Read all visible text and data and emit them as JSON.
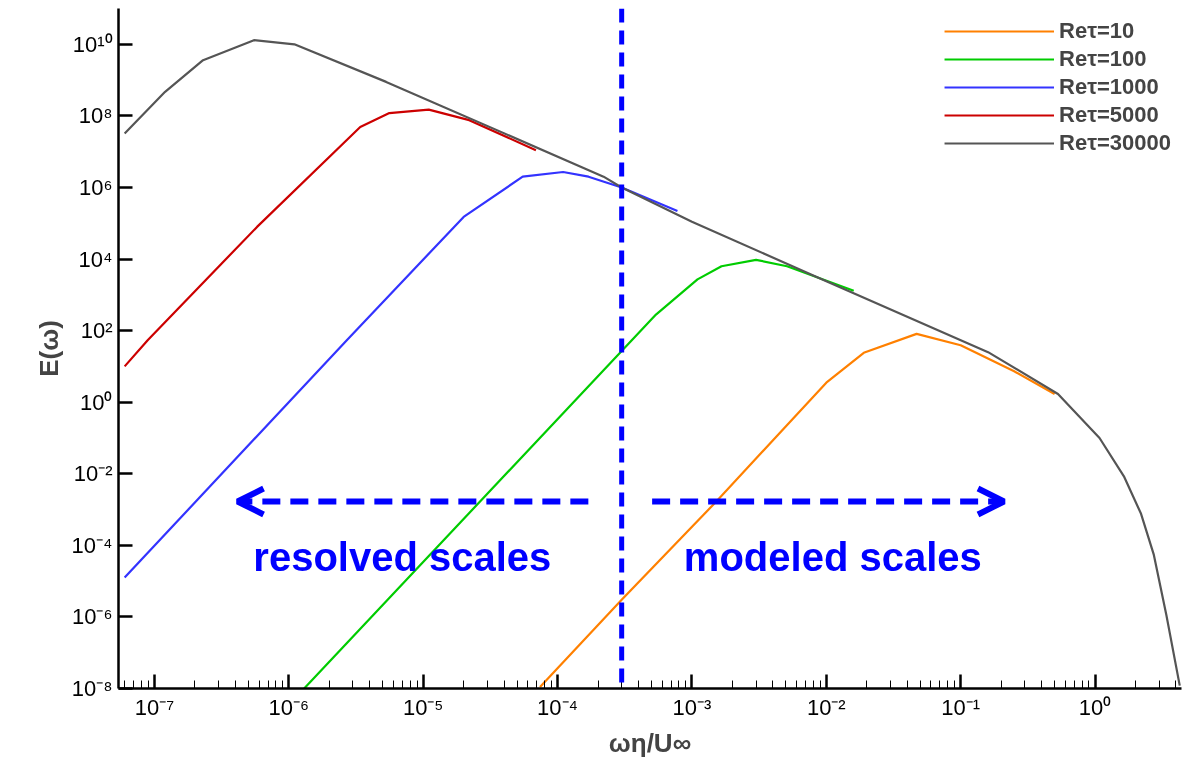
{
  "chart_data": {
    "type": "line",
    "xlabel": "ωη/U∞",
    "ylabel": "E(ω)",
    "log": "xy",
    "grid": false,
    "legend": "top right",
    "xlim": [
      5.4e-08,
      4.4
    ],
    "ylim": [
      1e-08,
      100000000000.0
    ],
    "xticks": [
      {
        "value": 1e-07,
        "label": "10⁻⁷"
      },
      {
        "value": 1e-06,
        "label": "10⁻⁶"
      },
      {
        "value": 1e-05,
        "label": "10⁻⁵"
      },
      {
        "value": 0.0001,
        "label": "10⁻⁴"
      },
      {
        "value": 0.001,
        "label": "10⁻³"
      },
      {
        "value": 0.01,
        "label": "10⁻²"
      },
      {
        "value": 0.1,
        "label": "10⁻¹"
      },
      {
        "value": 1,
        "label": "10⁰"
      }
    ],
    "yticks": [
      {
        "value": 1e-08,
        "label": "10⁻⁸"
      },
      {
        "value": 1e-06,
        "label": "10⁻⁶"
      },
      {
        "value": 0.0001,
        "label": "10⁻⁴"
      },
      {
        "value": 0.01,
        "label": "10⁻²"
      },
      {
        "value": 1,
        "label": "10⁰"
      },
      {
        "value": 100,
        "label": "10²"
      },
      {
        "value": 10000.0,
        "label": "10⁴"
      },
      {
        "value": 1000000.0,
        "label": "10⁶"
      },
      {
        "value": 100000000.0,
        "label": "10⁸"
      },
      {
        "value": 10000000000.0,
        "label": "10¹⁰"
      }
    ],
    "ref_lines": [
      {
        "axis": "x",
        "value": 0.0003,
        "label": null,
        "color": "#0000ff",
        "line_style": "dashed"
      }
    ],
    "annotations": [
      "resolved scales",
      "modeled scales"
    ],
    "series": [
      {
        "name": "Reτ=10",
        "color": "#ff8000",
        "x": [
          7.4e-05,
          0.0003,
          0.0015,
          0.01,
          0.019,
          0.047,
          0.1,
          0.25,
          0.5
        ],
        "values": [
          1.1e-08,
          3e-06,
          0.0016,
          3.5,
          24,
          81,
          39,
          7.3,
          1.7
        ]
      },
      {
        "name": "Reτ=100",
        "color": "#00cc00",
        "x": [
          1.3e-06,
          0.0003,
          0.00054,
          0.0011,
          0.00166,
          0.003,
          0.0051,
          0.016
        ],
        "values": [
          1e-08,
          27,
          280,
          2700,
          6300,
          9500,
          6300,
          1300
        ]
      },
      {
        "name": "Reτ=1000",
        "color": "#3333ff",
        "x": [
          6e-08,
          2.7e-06,
          2e-05,
          5.5e-05,
          0.00011,
          0.00017,
          0.0003,
          0.00078
        ],
        "values": [
          1.26e-05,
          54,
          150000.0,
          2000000.0,
          2700000.0,
          2000000.0,
          1000000.0,
          220000.0
        ]
      },
      {
        "name": "Reτ=5000",
        "color": "#cc0000",
        "x": [
          6e-08,
          8.9e-08,
          5.8e-07,
          3.4e-06,
          5.6e-06,
          1.1e-05,
          2.2e-05,
          6.9e-05
        ],
        "values": [
          10,
          54,
          79000.0,
          49000000.0,
          120000000.0,
          150000000.0,
          76000000.0,
          11000000.0
        ]
      },
      {
        "name": "Reτ=30000",
        "color": "#555555",
        "x": [
          6e-08,
          1.2e-07,
          2.3e-07,
          5.5e-07,
          1.1e-06,
          5.3e-06,
          0.00022,
          0.0003,
          0.001,
          0.01,
          0.16,
          0.53,
          1.08,
          1.64,
          2.2,
          2.74,
          3.4,
          4.27
        ],
        "values": [
          32000000.0,
          470000000.0,
          3600000000.0,
          13000000000.0,
          10000000000.0,
          890000000.0,
          2000000.0,
          1000000.0,
          110000.0,
          2400,
          25,
          1.7,
          0.1,
          0.0085,
          0.00076,
          5.4e-05,
          1.1e-06,
          1.2e-08
        ]
      }
    ]
  }
}
